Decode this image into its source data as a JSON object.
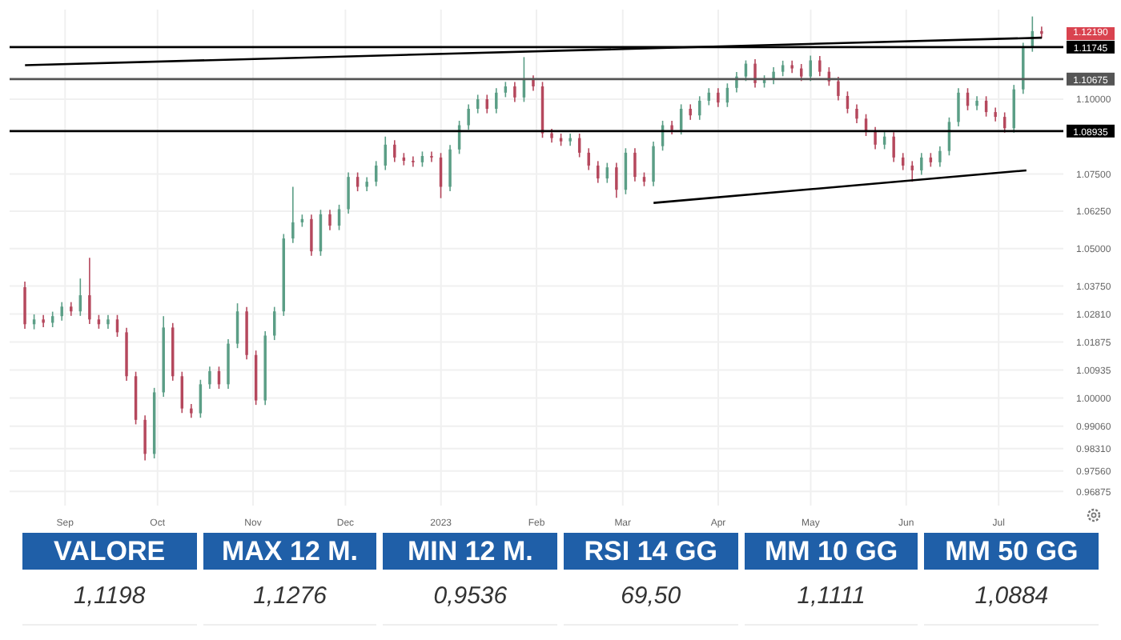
{
  "chart_data": [
    {
      "type": "candlestick",
      "grid": true,
      "x": [
        "2022-08-19",
        "2022-08-22",
        "2022-08-25",
        "2022-08-28",
        "2022-08-31",
        "2022-09-03",
        "2022-09-06",
        "2022-09-09",
        "2022-09-12",
        "2022-09-15",
        "2022-09-18",
        "2022-09-21",
        "2022-09-24",
        "2022-09-27",
        "2022-09-30",
        "2022-10-03",
        "2022-10-06",
        "2022-10-09",
        "2022-10-12",
        "2022-10-15",
        "2022-10-18",
        "2022-10-21",
        "2022-10-24",
        "2022-10-27",
        "2022-10-30",
        "2022-11-02",
        "2022-11-05",
        "2022-11-08",
        "2022-11-11",
        "2022-11-14",
        "2022-11-17",
        "2022-11-20",
        "2022-11-23",
        "2022-11-26",
        "2022-11-29",
        "2022-12-02",
        "2022-12-05",
        "2022-12-08",
        "2022-12-11",
        "2022-12-14",
        "2022-12-17",
        "2022-12-20",
        "2022-12-23",
        "2022-12-26",
        "2022-12-29",
        "2023-01-01",
        "2023-01-04",
        "2023-01-07",
        "2023-01-10",
        "2023-01-13",
        "2023-01-16",
        "2023-01-19",
        "2023-01-22",
        "2023-01-25",
        "2023-01-28",
        "2023-01-31",
        "2023-02-03",
        "2023-02-06",
        "2023-02-09",
        "2023-02-12",
        "2023-02-15",
        "2023-02-18",
        "2023-02-21",
        "2023-02-24",
        "2023-02-27",
        "2023-03-02",
        "2023-03-05",
        "2023-03-08",
        "2023-03-11",
        "2023-03-14",
        "2023-03-17",
        "2023-03-20",
        "2023-03-23",
        "2023-03-26",
        "2023-03-29",
        "2023-04-01",
        "2023-04-04",
        "2023-04-07",
        "2023-04-10",
        "2023-04-13",
        "2023-04-16",
        "2023-04-19",
        "2023-04-22",
        "2023-04-25",
        "2023-04-28",
        "2023-05-01",
        "2023-05-04",
        "2023-05-07",
        "2023-05-10",
        "2023-05-13",
        "2023-05-16",
        "2023-05-19",
        "2023-05-22",
        "2023-05-25",
        "2023-05-28",
        "2023-05-31",
        "2023-06-03",
        "2023-06-06",
        "2023-06-09",
        "2023-06-12",
        "2023-06-15",
        "2023-06-18",
        "2023-06-21",
        "2023-06-24",
        "2023-06-27",
        "2023-06-30",
        "2023-07-03",
        "2023-07-06",
        "2023-07-09",
        "2023-07-12",
        "2023-07-15"
      ],
      "ohlc": [
        [
          1.0371,
          1.039,
          1.0232,
          1.0247
        ],
        [
          1.0247,
          1.028,
          1.023,
          1.0263
        ],
        [
          1.0263,
          1.0278,
          1.0237,
          1.0252
        ],
        [
          1.0252,
          1.0289,
          1.0237,
          1.0274
        ],
        [
          1.0274,
          1.0321,
          1.0259,
          1.0306
        ],
        [
          1.0306,
          1.0321,
          1.0275,
          1.029
        ],
        [
          1.029,
          1.04,
          1.0275,
          1.0344
        ],
        [
          1.0344,
          1.0469,
          1.0248,
          1.0263
        ],
        [
          1.0263,
          1.0278,
          1.0232,
          1.0247
        ],
        [
          1.0247,
          1.0278,
          1.0232,
          1.0263
        ],
        [
          1.0263,
          1.0278,
          1.0205,
          1.022
        ],
        [
          1.022,
          1.0235,
          1.0058,
          1.0073
        ],
        [
          1.0073,
          1.0088,
          0.9912,
          0.9927
        ],
        [
          0.9927,
          0.9942,
          0.9791,
          0.9813
        ],
        [
          0.9813,
          1.0034,
          0.9798,
          1.0019
        ],
        [
          1.0019,
          1.0274,
          1.0004,
          1.0236
        ],
        [
          1.0236,
          1.0251,
          1.0058,
          1.0073
        ],
        [
          1.0073,
          1.0088,
          0.995,
          0.9965
        ],
        [
          0.9965,
          0.998,
          0.9934,
          0.9949
        ],
        [
          0.9949,
          1.0061,
          0.9934,
          1.0046
        ],
        [
          1.0046,
          1.0105,
          1.0031,
          1.009
        ],
        [
          1.009,
          1.0105,
          1.0031,
          1.0046
        ],
        [
          1.0046,
          1.0197,
          1.0031,
          1.0182
        ],
        [
          1.0182,
          1.0317,
          1.0167,
          1.029
        ],
        [
          1.029,
          1.0305,
          1.0129,
          1.0144
        ],
        [
          1.0144,
          1.0159,
          0.9977,
          0.9992
        ],
        [
          0.9992,
          1.0224,
          0.9977,
          1.0209
        ],
        [
          1.0209,
          1.0305,
          1.0194,
          1.029
        ],
        [
          1.029,
          1.0549,
          1.0275,
          1.0534
        ],
        [
          1.0534,
          1.0707,
          1.0519,
          1.0588
        ],
        [
          1.0588,
          1.0614,
          1.0573,
          1.0599
        ],
        [
          1.0599,
          1.0614,
          1.0476,
          1.0491
        ],
        [
          1.0491,
          1.063,
          1.0476,
          1.0615
        ],
        [
          1.0615,
          1.063,
          1.0562,
          1.0577
        ],
        [
          1.0577,
          1.0647,
          1.0562,
          1.0632
        ],
        [
          1.0632,
          1.0755,
          1.0617,
          1.074
        ],
        [
          1.074,
          1.0755,
          1.0692,
          1.0707
        ],
        [
          1.0707,
          1.0739,
          1.0692,
          1.0724
        ],
        [
          1.0724,
          1.0793,
          1.0709,
          1.0778
        ],
        [
          1.0778,
          1.0875,
          1.0763,
          1.0848
        ],
        [
          1.0848,
          1.0863,
          1.079,
          1.0805
        ],
        [
          1.0805,
          1.082,
          1.0779,
          1.0794
        ],
        [
          1.0794,
          1.0809,
          1.0774,
          1.0789
        ],
        [
          1.0789,
          1.0825,
          1.0774,
          1.081
        ],
        [
          1.081,
          1.0825,
          1.079,
          1.0805
        ],
        [
          1.0805,
          1.082,
          1.0669,
          1.0707
        ],
        [
          1.0707,
          1.0847,
          1.0692,
          1.0832
        ],
        [
          1.0832,
          1.0928,
          1.0817,
          1.0913
        ],
        [
          1.0913,
          1.0983,
          1.0898,
          1.0968
        ],
        [
          1.0968,
          1.1015,
          1.0953,
          1.1
        ],
        [
          1.1,
          1.1015,
          1.0953,
          1.0968
        ],
        [
          1.0968,
          1.1037,
          1.0953,
          1.1022
        ],
        [
          1.1022,
          1.1058,
          1.1007,
          1.1043
        ],
        [
          1.1043,
          1.1058,
          1.0991,
          1.1006
        ],
        [
          1.1006,
          1.1141,
          1.0991,
          1.1065
        ],
        [
          1.1065,
          1.108,
          1.1028,
          1.1043
        ],
        [
          1.1043,
          1.1058,
          1.0871,
          1.0886
        ],
        [
          1.0886,
          1.0901,
          1.0855,
          1.087
        ],
        [
          1.087,
          1.0885,
          1.0844,
          1.0859
        ],
        [
          1.0859,
          1.0885,
          1.0844,
          1.087
        ],
        [
          1.087,
          1.0885,
          1.0806,
          1.0821
        ],
        [
          1.0821,
          1.0836,
          1.0763,
          1.0778
        ],
        [
          1.0778,
          1.0793,
          1.072,
          1.0735
        ],
        [
          1.0735,
          1.0787,
          1.072,
          1.0772
        ],
        [
          1.0772,
          1.0787,
          1.067,
          1.0697
        ],
        [
          1.0697,
          1.0836,
          1.0682,
          1.0821
        ],
        [
          1.0821,
          1.0836,
          1.0725,
          1.074
        ],
        [
          1.074,
          1.0755,
          1.0709,
          1.0724
        ],
        [
          1.0724,
          1.0858,
          1.0709,
          1.0843
        ],
        [
          1.0843,
          1.0928,
          1.0828,
          1.0913
        ],
        [
          1.0913,
          1.0928,
          1.0882,
          1.0897
        ],
        [
          1.0897,
          1.0983,
          1.0882,
          1.0968
        ],
        [
          1.0968,
          1.0983,
          1.0931,
          1.0946
        ],
        [
          1.0946,
          1.101,
          1.0931,
          1.0995
        ],
        [
          1.0995,
          1.1037,
          1.098,
          1.1022
        ],
        [
          1.1022,
          1.1037,
          1.0974,
          1.0989
        ],
        [
          1.0989,
          1.1053,
          1.0974,
          1.1038
        ],
        [
          1.1038,
          1.1091,
          1.1023,
          1.1076
        ],
        [
          1.1076,
          1.113,
          1.1061,
          1.1119
        ],
        [
          1.1119,
          1.1134,
          1.1039,
          1.1054
        ],
        [
          1.1054,
          1.108,
          1.1039,
          1.1065
        ],
        [
          1.1065,
          1.1107,
          1.105,
          1.1092
        ],
        [
          1.1092,
          1.1129,
          1.1077,
          1.1114
        ],
        [
          1.1114,
          1.1129,
          1.1088,
          1.1103
        ],
        [
          1.1103,
          1.1118,
          1.1061,
          1.1076
        ],
        [
          1.1076,
          1.1146,
          1.1061,
          1.113
        ],
        [
          1.113,
          1.1145,
          1.1077,
          1.1092
        ],
        [
          1.1092,
          1.1107,
          1.1045,
          1.106
        ],
        [
          1.106,
          1.1075,
          1.0996,
          1.1011
        ],
        [
          1.1011,
          1.1026,
          1.0953,
          1.0968
        ],
        [
          1.0968,
          1.0983,
          1.092,
          1.0935
        ],
        [
          1.0935,
          1.095,
          1.0877,
          1.0892
        ],
        [
          1.0892,
          1.0907,
          1.0833,
          1.0848
        ],
        [
          1.0848,
          1.089,
          1.0833,
          1.0875
        ],
        [
          1.0875,
          1.089,
          1.079,
          1.0805
        ],
        [
          1.0805,
          1.082,
          1.0763,
          1.0778
        ],
        [
          1.0778,
          1.0793,
          1.0724,
          1.0762
        ],
        [
          1.0762,
          1.082,
          1.0747,
          1.0805
        ],
        [
          1.0805,
          1.082,
          1.0774,
          1.0789
        ],
        [
          1.0789,
          1.0842,
          1.0774,
          1.0827
        ],
        [
          1.0827,
          1.0939,
          1.0812,
          1.0924
        ],
        [
          1.0924,
          1.1037,
          1.0909,
          1.1022
        ],
        [
          1.1022,
          1.1037,
          1.0963,
          1.0978
        ],
        [
          1.0978,
          1.101,
          1.0963,
          1.0995
        ],
        [
          1.0995,
          1.101,
          1.0942,
          1.0957
        ],
        [
          1.0957,
          1.0972,
          1.0926,
          1.0941
        ],
        [
          1.0941,
          1.0956,
          1.0888,
          1.0903
        ],
        [
          1.0903,
          1.1048,
          1.0888,
          1.1033
        ],
        [
          1.1033,
          1.1189,
          1.1018,
          1.1174
        ],
        [
          1.1174,
          1.1277,
          1.1159,
          1.1228
        ],
        [
          1.1228,
          1.1243,
          1.1204,
          1.1219
        ]
      ],
      "colors": [
        "#b5485d",
        "#5b9e86",
        "#b5485d",
        "#5b9e86",
        "#5b9e86",
        "#b5485d",
        "#5b9e86",
        "#b5485d",
        "#b5485d",
        "#5b9e86",
        "#b5485d",
        "#b5485d",
        "#b5485d",
        "#b5485d",
        "#5b9e86",
        "#5b9e86",
        "#b5485d",
        "#b5485d",
        "#b5485d",
        "#5b9e86",
        "#5b9e86",
        "#b5485d",
        "#5b9e86",
        "#5b9e86",
        "#b5485d",
        "#b5485d",
        "#5b9e86",
        "#5b9e86",
        "#5b9e86",
        "#5b9e86",
        "#5b9e86",
        "#b5485d",
        "#5b9e86",
        "#b5485d",
        "#5b9e86",
        "#5b9e86",
        "#b5485d",
        "#5b9e86",
        "#5b9e86",
        "#5b9e86",
        "#b5485d",
        "#b5485d",
        "#b5485d",
        "#5b9e86",
        "#b5485d",
        "#b5485d",
        "#5b9e86",
        "#5b9e86",
        "#5b9e86",
        "#5b9e86",
        "#b5485d",
        "#5b9e86",
        "#5b9e86",
        "#b5485d",
        "#5b9e86",
        "#b5485d",
        "#b5485d",
        "#b5485d",
        "#b5485d",
        "#5b9e86",
        "#b5485d",
        "#b5485d",
        "#b5485d",
        "#5b9e86",
        "#b5485d",
        "#5b9e86",
        "#b5485d",
        "#b5485d",
        "#5b9e86",
        "#5b9e86",
        "#b5485d",
        "#5b9e86",
        "#b5485d",
        "#5b9e86",
        "#5b9e86",
        "#b5485d",
        "#5b9e86",
        "#5b9e86",
        "#5b9e86",
        "#b5485d",
        "#5b9e86",
        "#5b9e86",
        "#5b9e86",
        "#b5485d",
        "#b5485d",
        "#5b9e86",
        "#b5485d",
        "#b5485d",
        "#b5485d",
        "#b5485d",
        "#b5485d",
        "#b5485d",
        "#b5485d",
        "#5b9e86",
        "#b5485d",
        "#b5485d",
        "#b5485d",
        "#5b9e86",
        "#b5485d",
        "#5b9e86",
        "#5b9e86",
        "#5b9e86",
        "#b5485d",
        "#5b9e86",
        "#b5485d",
        "#b5485d",
        "#b5485d",
        "#5b9e86",
        "#5b9e86",
        "#5b9e86",
        "#b5485d"
      ],
      "series": [
        {
          "type": "line",
          "color": "#000000",
          "x": [
            "2022-08-19",
            "2023-07-15"
          ],
          "values": [
            1.1114,
            1.1206
          ]
        },
        {
          "type": "line",
          "color": "#000000",
          "x": [
            "2023-03-11",
            "2023-07-10"
          ],
          "values": [
            1.0653,
            1.0762
          ]
        }
      ],
      "ref_lines": [
        {
          "axis": "y",
          "value": 1.11745,
          "label": "1.11745",
          "color": "#000000"
        },
        {
          "axis": "y",
          "value": 1.10675,
          "label": "1.10675",
          "color": "#555555"
        },
        {
          "axis": "y",
          "value": 1.08935,
          "label": "1.08935",
          "color": "#000000"
        }
      ],
      "annotations": [
        "1.12190"
      ],
      "xlim": [
        "2022-08-14",
        "2023-07-22"
      ],
      "xticks": [
        {
          "value": "2022-09-01",
          "label": "Sep"
        },
        {
          "value": "2022-10-01",
          "label": "Oct"
        },
        {
          "value": "2022-11-01",
          "label": "Nov"
        },
        {
          "value": "2022-12-01",
          "label": "Dec"
        },
        {
          "value": "2023-01-01",
          "label": "2023"
        },
        {
          "value": "2023-02-01",
          "label": "Feb"
        },
        {
          "value": "2023-03-01",
          "label": "Mar"
        },
        {
          "value": "2023-04-01",
          "label": "Apr"
        },
        {
          "value": "2023-05-01",
          "label": "May"
        },
        {
          "value": "2023-06-01",
          "label": "Jun"
        },
        {
          "value": "2023-07-01",
          "label": "Jul"
        }
      ],
      "ylim": [
        0.964,
        1.13
      ],
      "yticks": [
        {
          "value": 1.1,
          "label": "1.10000"
        },
        {
          "value": 1.075,
          "label": "1.07500"
        },
        {
          "value": 1.0625,
          "label": "1.06250"
        },
        {
          "value": 1.05,
          "label": "1.05000"
        },
        {
          "value": 1.0375,
          "label": "1.03750"
        },
        {
          "value": 1.0281,
          "label": "1.02810"
        },
        {
          "value": 1.01875,
          "label": "1.01875"
        },
        {
          "value": 1.00935,
          "label": "1.00935"
        },
        {
          "value": 1,
          "label": "1.00000"
        },
        {
          "value": 0.9906,
          "label": "0.99060"
        },
        {
          "value": 0.9831,
          "label": "0.98310"
        },
        {
          "value": 0.9756,
          "label": "0.97560"
        },
        {
          "value": 0.96875,
          "label": "0.96875"
        }
      ]
    },
    {
      "type": "other",
      "annotations": [
        "VALORE",
        "1,1198",
        "MAX 12 M.",
        "1,1276",
        "MIN 12 M.",
        "0,9536",
        "RSI 14 GG",
        "69,50",
        "MM 10 GG",
        "1,1111",
        "MM 50 GG",
        "1,0884"
      ]
    }
  ]
}
